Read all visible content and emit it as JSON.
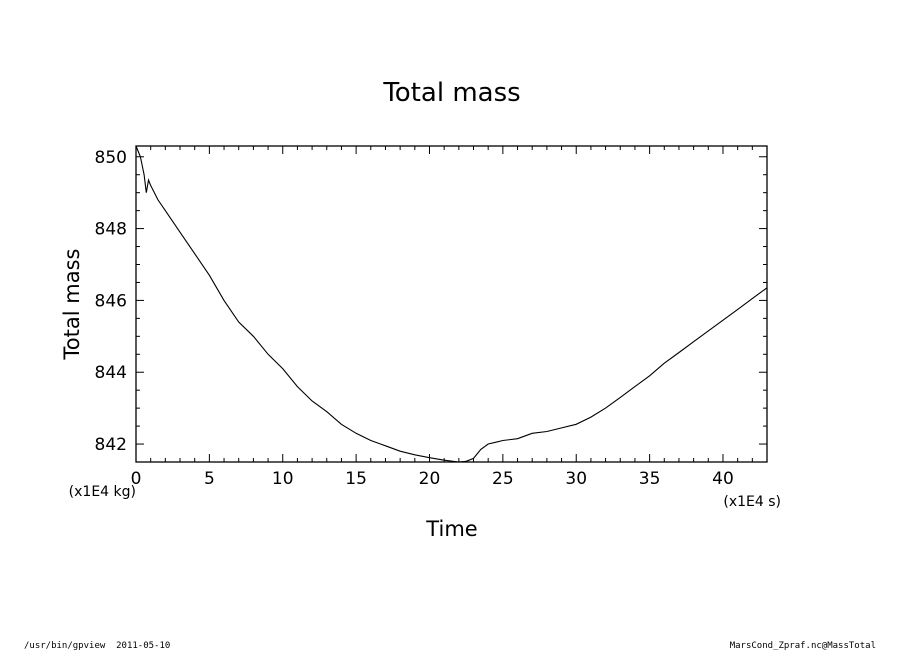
{
  "chart_data": {
    "type": "line",
    "title": "Total mass",
    "xlabel": "Time",
    "ylabel": "Total mass",
    "x_unit": "(x1E4 s)",
    "y_unit": "(x1E4 kg)",
    "xlim": [
      0,
      43
    ],
    "ylim": [
      841.5,
      850.3
    ],
    "x_ticks": [
      0,
      5,
      10,
      15,
      20,
      25,
      30,
      35,
      40
    ],
    "y_ticks": [
      842,
      844,
      846,
      848,
      850
    ],
    "grid": false,
    "series": [
      {
        "x": [
          0,
          0.3,
          0.55,
          0.7,
          0.85,
          1.0,
          1.5,
          2,
          3,
          4,
          5,
          6,
          7,
          8,
          9,
          10,
          11,
          12,
          13,
          14,
          15,
          16,
          17,
          18,
          19,
          20,
          21,
          22,
          22.5,
          23,
          23.5,
          24,
          24.5,
          25,
          26,
          27,
          28,
          29,
          30,
          31,
          32,
          33,
          34,
          35,
          36,
          37,
          38,
          39,
          40,
          41,
          42,
          43
        ],
        "y": [
          850.3,
          850.0,
          849.5,
          849.0,
          849.35,
          849.2,
          848.8,
          848.5,
          847.9,
          847.3,
          846.7,
          846.0,
          845.4,
          845.0,
          844.5,
          844.1,
          843.6,
          843.2,
          842.9,
          842.55,
          842.3,
          842.1,
          841.95,
          841.8,
          841.7,
          841.62,
          841.55,
          841.5,
          841.52,
          841.6,
          841.85,
          842.0,
          842.05,
          842.1,
          842.15,
          842.3,
          842.35,
          842.45,
          842.55,
          842.75,
          843.0,
          843.3,
          843.6,
          843.9,
          844.25,
          844.55,
          844.85,
          845.15,
          845.45,
          845.75,
          846.05,
          846.35
        ]
      }
    ]
  },
  "footer": {
    "left": "/usr/bin/gpview  2011-05-10",
    "right": "MarsCond_Zpraf.nc@MassTotal"
  }
}
